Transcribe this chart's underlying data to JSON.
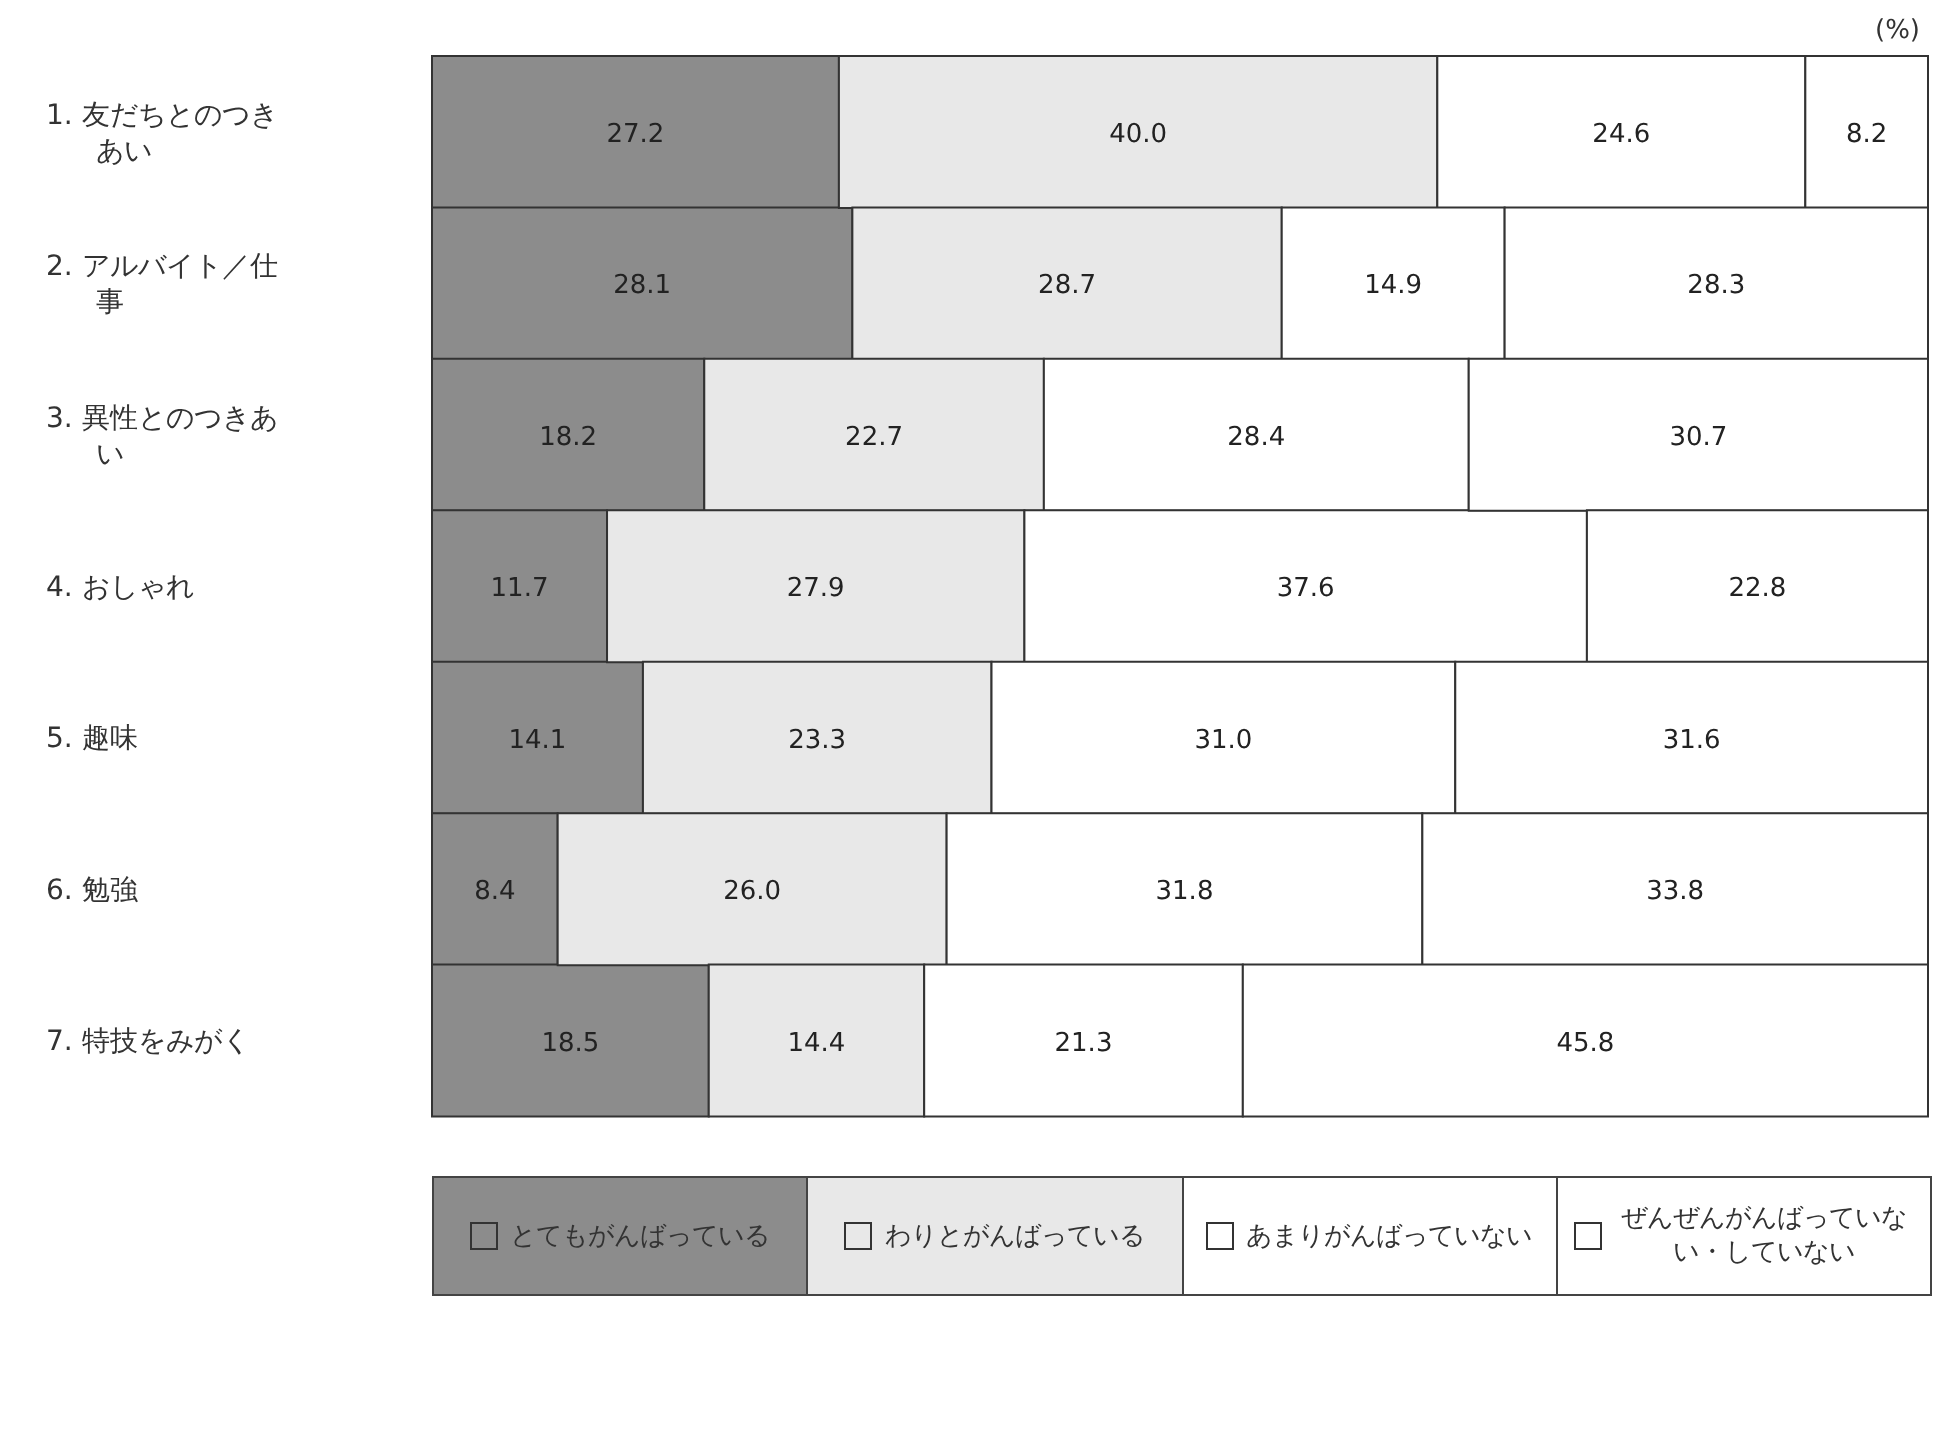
{
  "chart_data": {
    "type": "bar",
    "orientation": "horizontal",
    "stacked": true,
    "legend": "bottom",
    "tick_labels": "y",
    "annotations": [
      "(%)"
    ],
    "categories": [
      "1. 友だちとのつきあい",
      "2. アルバイト／仕事",
      "3. 異性とのつきあい",
      "4. おしゃれ",
      "5. 趣味",
      "6. 勉強",
      "7. 特技をみがく"
    ],
    "series": [
      {
        "name": "とてもがんばっている",
        "color": "#8c8c8c",
        "values": [
          27.2,
          28.1,
          18.2,
          11.7,
          14.1,
          8.4,
          18.5
        ],
        "value_labels": [
          "27.2",
          "28.1",
          "18.2",
          "11.7",
          "14.1",
          "8.4",
          "18.5"
        ]
      },
      {
        "name": "わりとがんばっている",
        "color": "#e8e8e8",
        "values": [
          40.0,
          28.7,
          22.7,
          27.9,
          23.3,
          26.0,
          14.4
        ],
        "value_labels": [
          "40.0",
          "28.7",
          "22.7",
          "27.9",
          "23.3",
          "26.0",
          "14.4"
        ]
      },
      {
        "name": "あまりがんばっていない",
        "color": "#ffffff",
        "values": [
          24.6,
          14.9,
          28.4,
          37.6,
          31.0,
          31.8,
          21.3
        ],
        "value_labels": [
          "24.6",
          "14.9",
          "28.4",
          "37.6",
          "31.0",
          "31.8",
          "21.3"
        ]
      },
      {
        "name": "ぜんぜんがんばっていない・していない",
        "color": "#ffffff",
        "values": [
          8.2,
          28.3,
          30.7,
          22.8,
          31.6,
          33.8,
          45.8
        ],
        "value_labels": [
          "8.2",
          "28.3",
          "30.7",
          "22.8",
          "31.6",
          "33.8",
          "45.8"
        ]
      }
    ]
  }
}
